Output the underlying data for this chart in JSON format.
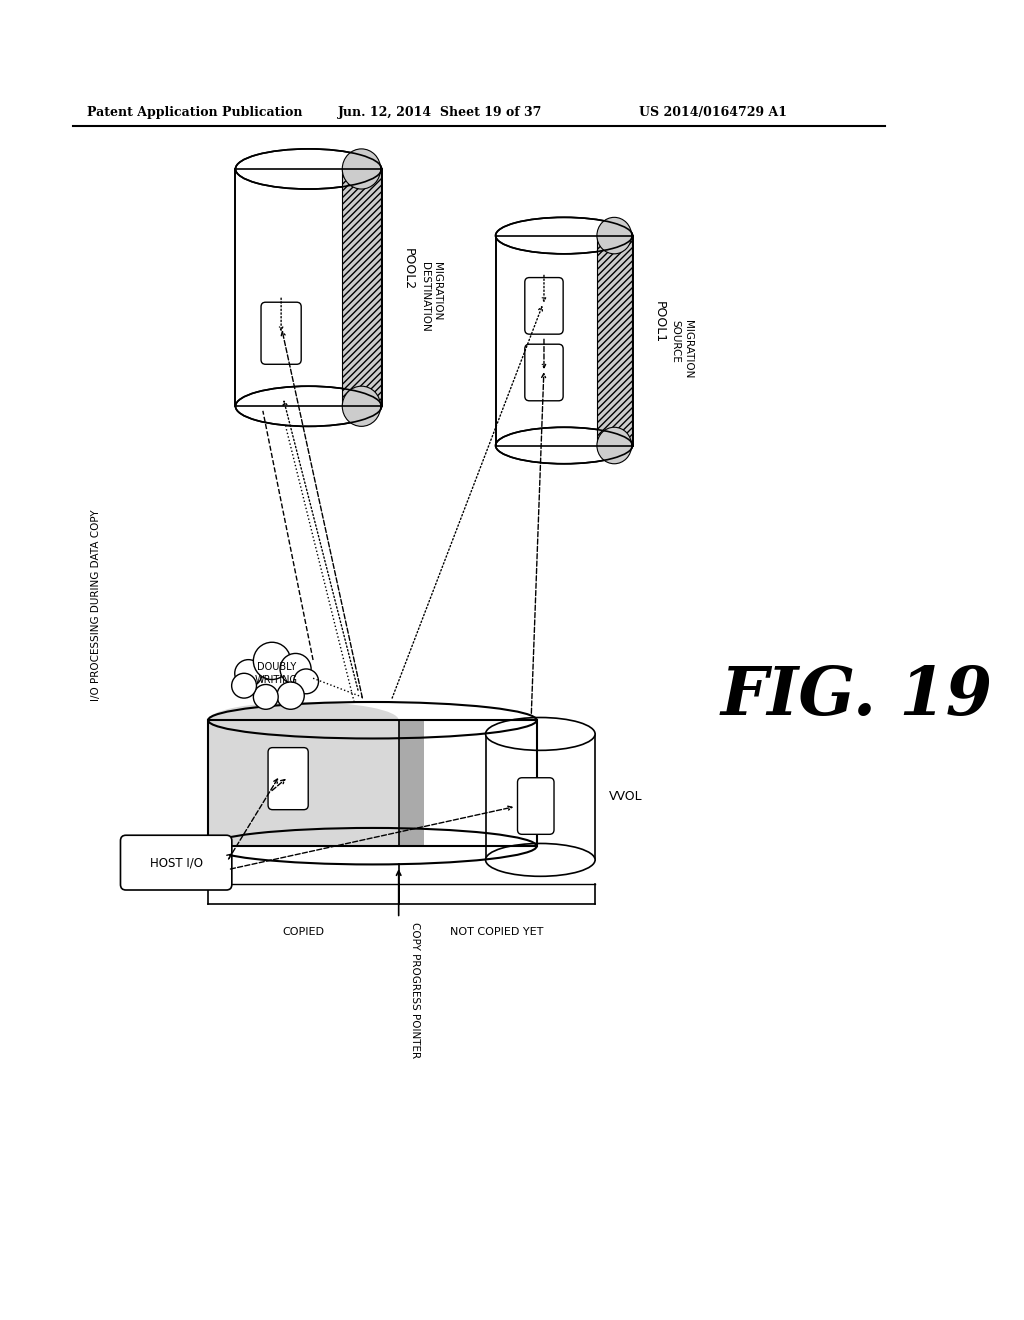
{
  "title_line1": "Patent Application Publication",
  "title_line2": "Jun. 12, 2014  Sheet 19 of 37",
  "title_line3": "US 2014/0164729 A1",
  "fig_label": "FIG. 19",
  "side_label": "I/O PROCESSING DURING DATA COPY",
  "bg_color": "#ffffff",
  "text_color": "#000000",
  "pool2_label": "POOL2",
  "pool1_label": "POOL1",
  "migration_dest_label": "MIGRATION\nDESTINATION",
  "migration_src_label": "MIGRATION\nSOURCE",
  "host_io_label": "HOST I/O",
  "copied_label": "COPIED",
  "copy_progress_label": "COPY PROGRESS POINTER",
  "not_copied_label": "NOT COPIED YET",
  "doubly_writing_label": "DOUBLY\nWRITING",
  "vvol_label": "VVOL"
}
